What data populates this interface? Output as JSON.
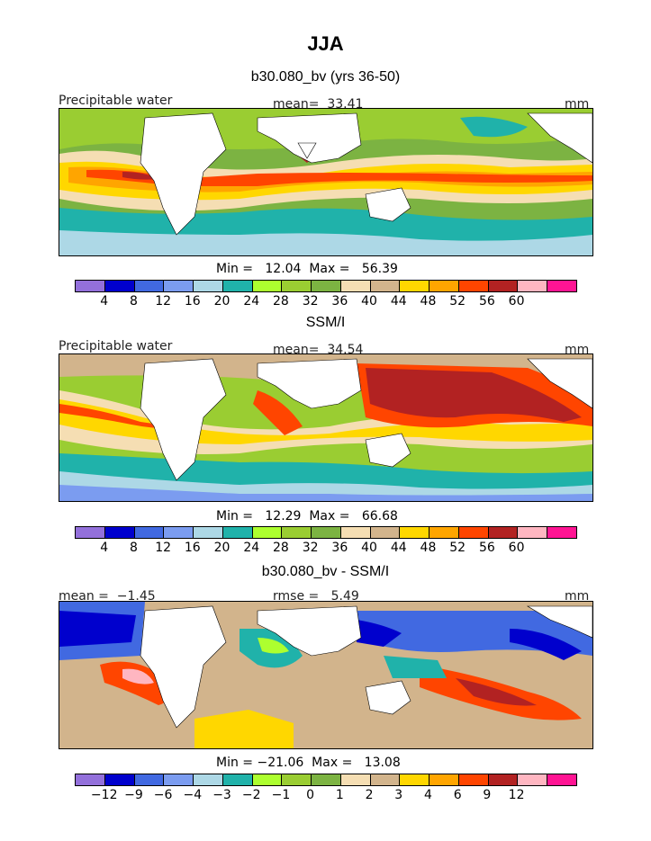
{
  "page_title": "JJA",
  "colors": {
    "palette": [
      "#9370db",
      "#0000cd",
      "#4169e1",
      "#7b9cf0",
      "#add8e6",
      "#20b2aa",
      "#adff2f",
      "#9acd32",
      "#7cb342",
      "#f5deb3",
      "#d2b48c",
      "#ffd700",
      "#ffa500",
      "#ff4500",
      "#b22222",
      "#ffb6c1",
      "#ff1493"
    ],
    "land": "#ffffff",
    "coast": "#000000"
  },
  "panels": [
    {
      "subtitle": "b30.080_bv (yrs 36-50)",
      "left_label": "Precipitable water",
      "center_label": "mean=  33.41",
      "right_label": "mm",
      "stats": "Min =   12.04  Max =   56.39",
      "colorbar_ticks": [
        "4",
        "8",
        "12",
        "16",
        "20",
        "24",
        "28",
        "32",
        "36",
        "40",
        "44",
        "48",
        "52",
        "56",
        "60"
      ]
    },
    {
      "subtitle": "SSM/I",
      "left_label": "Precipitable water",
      "center_label": "mean=  34.54",
      "right_label": "mm",
      "stats": "Min =   12.29  Max =   66.68",
      "colorbar_ticks": [
        "4",
        "8",
        "12",
        "16",
        "20",
        "24",
        "28",
        "32",
        "36",
        "40",
        "44",
        "48",
        "52",
        "56",
        "60"
      ]
    },
    {
      "subtitle": "b30.080_bv - SSM/I",
      "left_label": "mean =  −1.45",
      "center_label": "rmse =   5.49",
      "right_label": "mm",
      "stats": "Min = −21.06  Max =   13.08",
      "colorbar_ticks": [
        "−12",
        "−9",
        "−6",
        "−4",
        "−3",
        "−2",
        "−1",
        "0",
        "1",
        "2",
        "3",
        "4",
        "6",
        "9",
        "12"
      ]
    }
  ]
}
